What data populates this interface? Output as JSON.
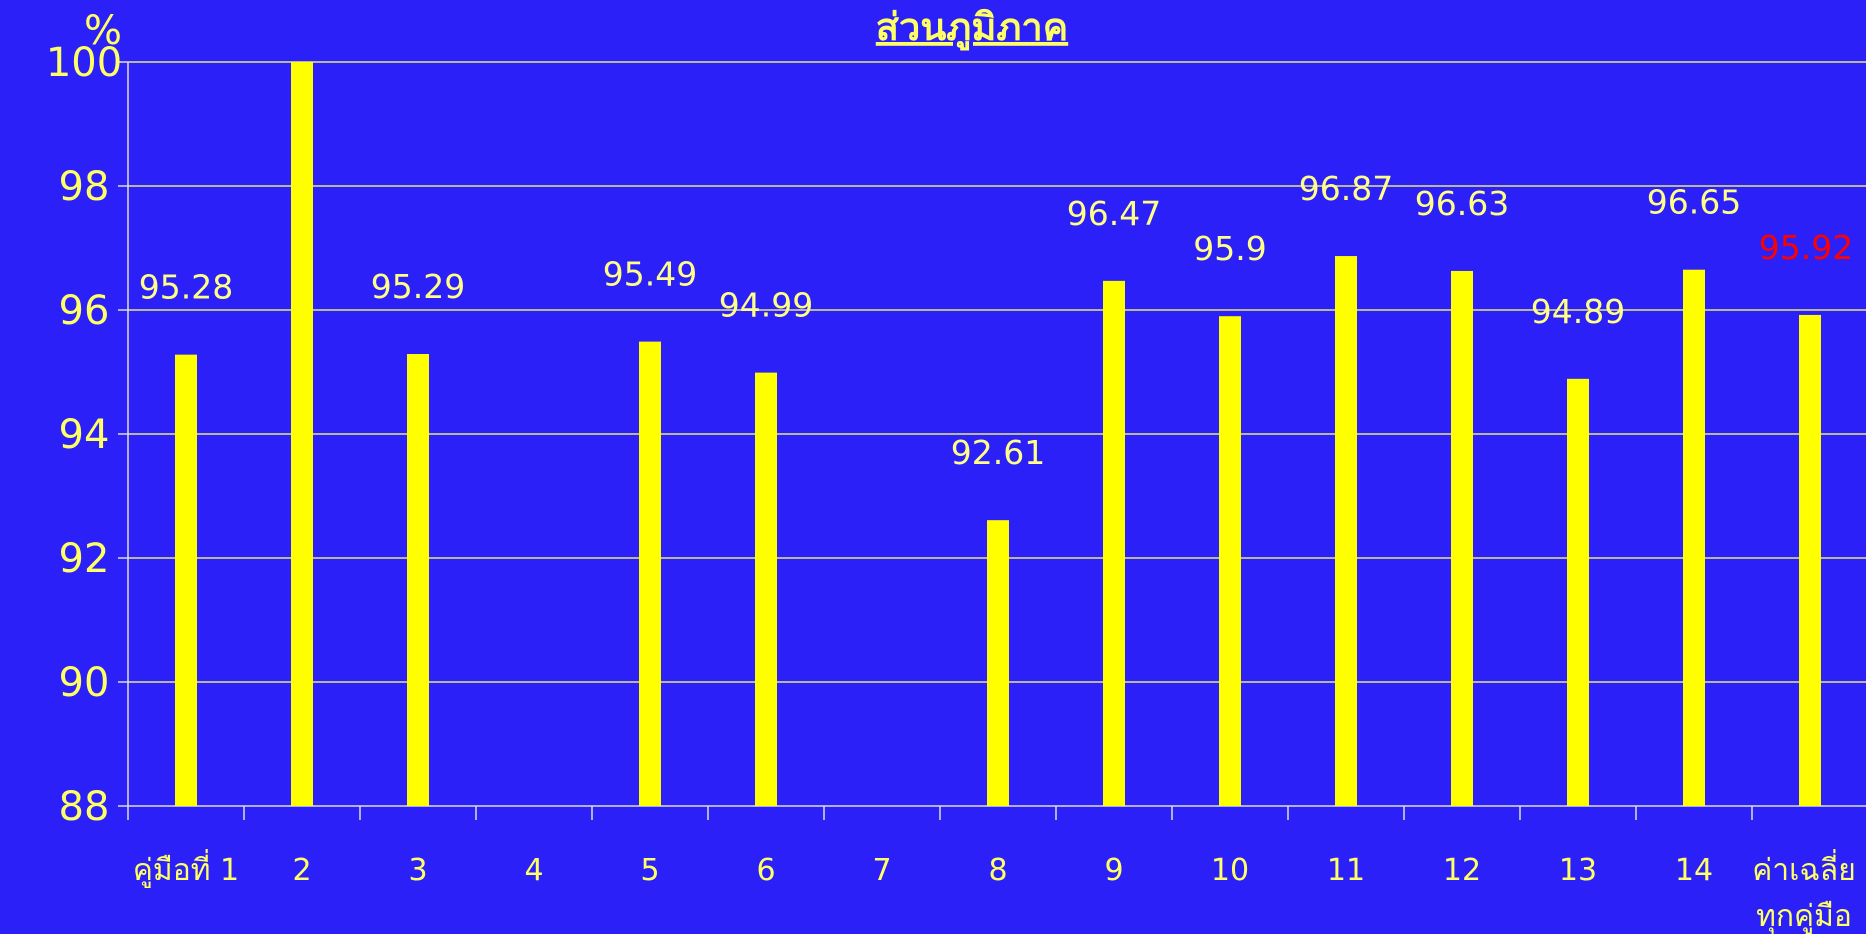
{
  "chart_data": {
    "type": "bar",
    "title": "ส่วนภูมิภาค",
    "ylabel": "%",
    "ylim": [
      88,
      100
    ],
    "yticks": [
      88,
      90,
      92,
      94,
      96,
      98,
      100
    ],
    "grid": true,
    "categories": [
      "คู่มือที่ 1",
      "2",
      "3",
      "4",
      "5",
      "6",
      "7",
      "8",
      "9",
      "10",
      "11",
      "12",
      "13",
      "14",
      "ค่าเฉลี่ย ทุกคู่มือ"
    ],
    "category_lines": [
      [
        "คู่มือที่ 1"
      ],
      [
        "2"
      ],
      [
        "3"
      ],
      [
        "4"
      ],
      [
        "5"
      ],
      [
        "6"
      ],
      [
        "7"
      ],
      [
        "8"
      ],
      [
        "9"
      ],
      [
        "10"
      ],
      [
        "11"
      ],
      [
        "12"
      ],
      [
        "13"
      ],
      [
        "14"
      ],
      [
        "ค่าเฉลี่ย",
        "ทุกคู่มือ"
      ]
    ],
    "series": [
      {
        "values": [
          95.28,
          100,
          95.29,
          null,
          95.49,
          94.99,
          null,
          92.61,
          96.47,
          95.9,
          96.87,
          96.63,
          94.89,
          96.65,
          95.92
        ],
        "labels": [
          "95.28",
          "",
          "95.29",
          "",
          "95.49",
          "94.99",
          "",
          "92.61",
          "96.47",
          "95.9",
          "96.87",
          "96.63",
          "94.89",
          "96.65",
          "95.92"
        ]
      }
    ],
    "colors": {
      "background": "#2b21f8",
      "bar": "#ffff00",
      "text": "#ffff66",
      "label": "#ffff88",
      "highlight_label": "#ff0000",
      "grid": "#e8e880",
      "axis": "#dddddd"
    }
  }
}
